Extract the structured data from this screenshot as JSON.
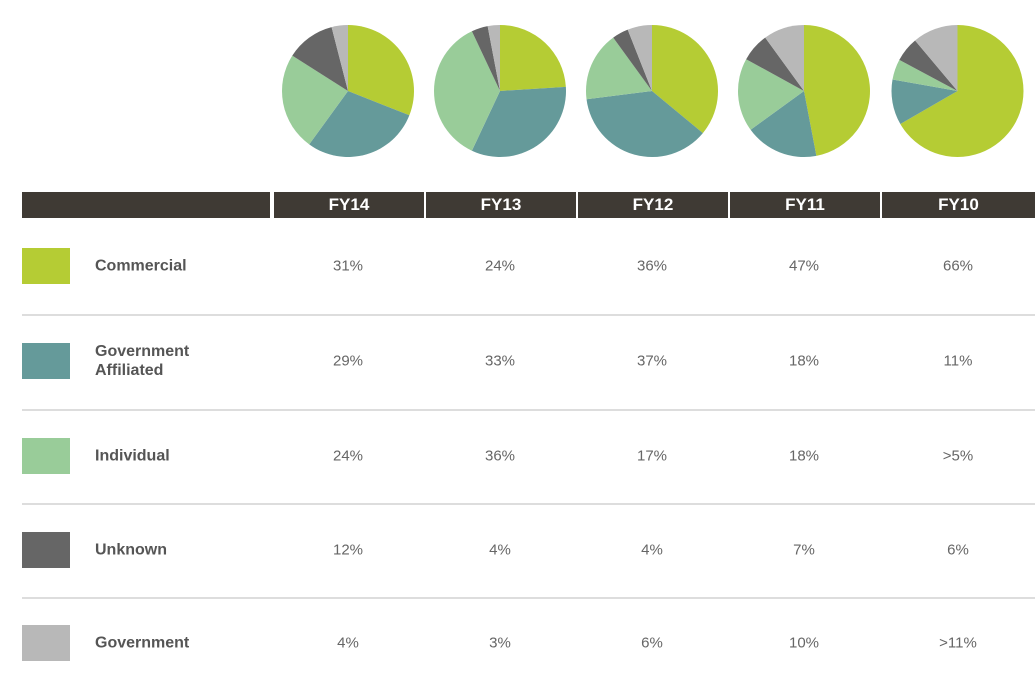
{
  "chart_data": [
    {
      "type": "pie",
      "title": "FY14",
      "categories": [
        "Commercial",
        "Government Affiliated",
        "Individual",
        "Unknown",
        "Government"
      ],
      "colors": [
        "#b5cc34",
        "#659a9a",
        "#99cc99",
        "#666666",
        "#b8b8b8"
      ],
      "values": [
        31,
        29,
        24,
        12,
        4
      ],
      "value_labels": [
        "31%",
        "29%",
        "24%",
        "12%",
        "4%"
      ]
    },
    {
      "type": "pie",
      "title": "FY13",
      "categories": [
        "Commercial",
        "Government Affiliated",
        "Individual",
        "Unknown",
        "Government"
      ],
      "colors": [
        "#b5cc34",
        "#659a9a",
        "#99cc99",
        "#666666",
        "#b8b8b8"
      ],
      "values": [
        24,
        33,
        36,
        4,
        3
      ],
      "value_labels": [
        "24%",
        "33%",
        "36%",
        "4%",
        "3%"
      ]
    },
    {
      "type": "pie",
      "title": "FY12",
      "categories": [
        "Commercial",
        "Government Affiliated",
        "Individual",
        "Unknown",
        "Government"
      ],
      "colors": [
        "#b5cc34",
        "#659a9a",
        "#99cc99",
        "#666666",
        "#b8b8b8"
      ],
      "values": [
        36,
        37,
        17,
        4,
        6
      ],
      "value_labels": [
        "36%",
        "37%",
        "17%",
        "4%",
        "6%"
      ]
    },
    {
      "type": "pie",
      "title": "FY11",
      "categories": [
        "Commercial",
        "Government Affiliated",
        "Individual",
        "Unknown",
        "Government"
      ],
      "colors": [
        "#b5cc34",
        "#659a9a",
        "#99cc99",
        "#666666",
        "#b8b8b8"
      ],
      "values": [
        47,
        18,
        18,
        7,
        10
      ],
      "value_labels": [
        "47%",
        "18%",
        "18%",
        "7%",
        "10%"
      ]
    },
    {
      "type": "pie",
      "title": "FY10",
      "categories": [
        "Commercial",
        "Government Affiliated",
        "Individual",
        "Unknown",
        "Government"
      ],
      "colors": [
        "#b5cc34",
        "#659a9a",
        "#99cc99",
        "#666666",
        "#b8b8b8"
      ],
      "values": [
        66,
        11,
        5,
        6,
        11
      ],
      "value_labels": [
        "66%",
        "11%",
        ">5%",
        "6%",
        ">11%"
      ]
    }
  ]
}
